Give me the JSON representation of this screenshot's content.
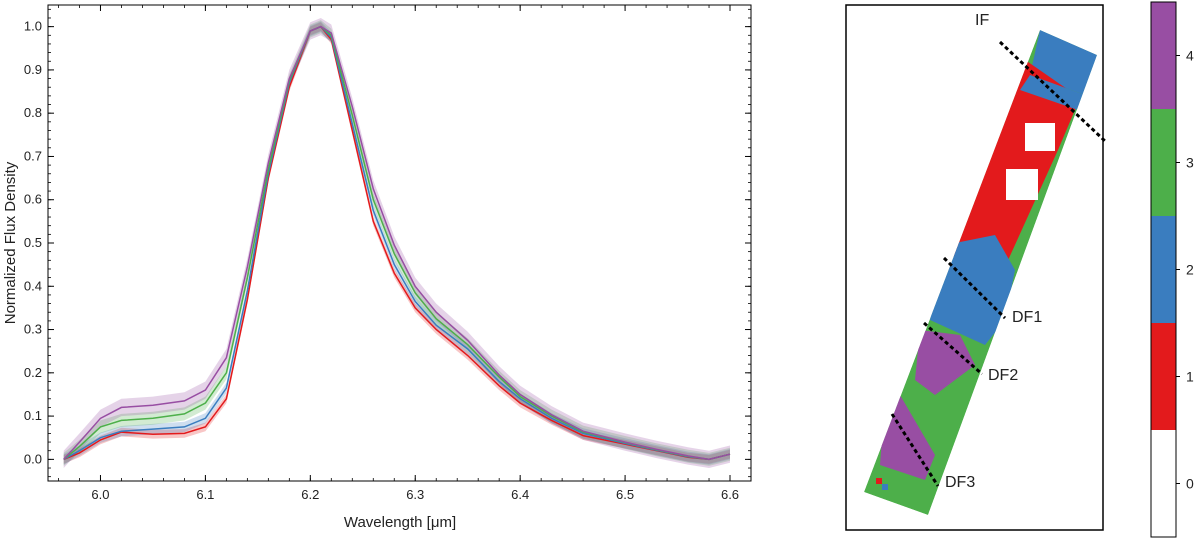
{
  "chart_data": [
    {
      "type": "line",
      "xlabel": "Wavelength [μm]",
      "ylabel": "Normalized Flux Density",
      "xlim": [
        5.95,
        6.62
      ],
      "ylim": [
        -0.05,
        1.05
      ],
      "xticks": [
        "6.0",
        "6.1",
        "6.2",
        "6.3",
        "6.4",
        "6.5",
        "6.6"
      ],
      "yticks": [
        "0.0",
        "0.1",
        "0.2",
        "0.3",
        "0.4",
        "0.5",
        "0.6",
        "0.7",
        "0.8",
        "0.9",
        "1.0"
      ],
      "grid": false,
      "x": [
        5.965,
        5.98,
        6.0,
        6.02,
        6.05,
        6.08,
        6.1,
        6.12,
        6.14,
        6.16,
        6.18,
        6.2,
        6.21,
        6.22,
        6.24,
        6.26,
        6.28,
        6.3,
        6.32,
        6.35,
        6.38,
        6.4,
        6.43,
        6.46,
        6.5,
        6.53,
        6.56,
        6.58,
        6.6
      ],
      "series": [
        {
          "color": "#e31a1c",
          "band": 0.01,
          "values": [
            0.0,
            0.015,
            0.045,
            0.063,
            0.058,
            0.06,
            0.075,
            0.14,
            0.37,
            0.65,
            0.86,
            0.99,
            1.0,
            0.97,
            0.76,
            0.55,
            0.43,
            0.35,
            0.3,
            0.24,
            0.17,
            0.13,
            0.09,
            0.055,
            0.035,
            0.02,
            0.005,
            0.0,
            0.012
          ]
        },
        {
          "color": "#3a7dbf",
          "band": 0.012,
          "values": [
            0.0,
            0.02,
            0.05,
            0.065,
            0.07,
            0.075,
            0.095,
            0.165,
            0.39,
            0.66,
            0.87,
            0.99,
            1.0,
            0.975,
            0.775,
            0.575,
            0.45,
            0.365,
            0.31,
            0.255,
            0.18,
            0.14,
            0.095,
            0.06,
            0.037,
            0.021,
            0.006,
            0.0,
            0.012
          ]
        },
        {
          "color": "#4daf4a",
          "band": 0.015,
          "values": [
            0.0,
            0.03,
            0.075,
            0.09,
            0.095,
            0.105,
            0.13,
            0.2,
            0.42,
            0.67,
            0.875,
            0.99,
            1.0,
            0.98,
            0.795,
            0.6,
            0.475,
            0.385,
            0.325,
            0.265,
            0.19,
            0.145,
            0.1,
            0.063,
            0.039,
            0.022,
            0.007,
            0.0,
            0.012
          ]
        },
        {
          "color": "#984ea3",
          "band": 0.02,
          "values": [
            0.0,
            0.04,
            0.095,
            0.12,
            0.125,
            0.135,
            0.16,
            0.235,
            0.445,
            0.685,
            0.88,
            0.99,
            1.0,
            0.985,
            0.815,
            0.625,
            0.495,
            0.4,
            0.34,
            0.275,
            0.195,
            0.15,
            0.103,
            0.065,
            0.04,
            0.023,
            0.008,
            0.0,
            0.012
          ]
        }
      ]
    },
    {
      "type": "heatmap",
      "annotations": [
        "IF",
        "DF1",
        "DF2",
        "DF3"
      ],
      "colorbar": {
        "ticks": [
          "0",
          "1",
          "2",
          "3",
          "4"
        ],
        "colors": [
          "#ffffff",
          "#e31a1c",
          "#3a7dbf",
          "#4daf4a",
          "#984ea3"
        ]
      }
    }
  ]
}
